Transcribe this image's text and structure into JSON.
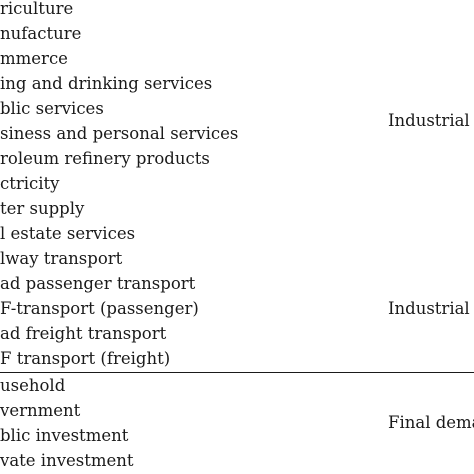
{
  "table": {
    "rows": [
      {
        "sector": "riculture"
      },
      {
        "sector": "nufacture"
      },
      {
        "sector": "mmerce"
      },
      {
        "sector": "ing and drinking services"
      },
      {
        "sector": "blic services"
      },
      {
        "sector": "siness and personal services"
      },
      {
        "sector": "roleum refinery products"
      },
      {
        "sector": "ctricity"
      },
      {
        "sector": "ter supply"
      },
      {
        "sector": "l estate services"
      },
      {
        "sector": "lway transport"
      },
      {
        "sector": "ad passenger transport"
      },
      {
        "sector": "F-transport (passenger)"
      },
      {
        "sector": "ad freight transport"
      },
      {
        "sector": "F transport (freight)"
      },
      {
        "sector": "usehold"
      },
      {
        "sector": "vernment"
      },
      {
        "sector": "blic investment"
      },
      {
        "sector": "vate investment"
      }
    ],
    "groups": [
      {
        "label": "Industrial"
      },
      {
        "label": "Industrial"
      },
      {
        "label": "Final dema"
      }
    ]
  }
}
